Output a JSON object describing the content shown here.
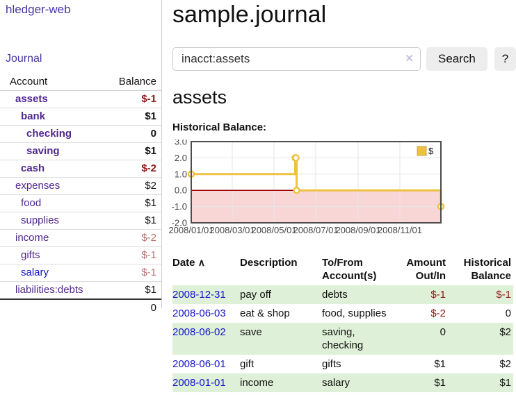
{
  "app": {
    "title": "hledger-web",
    "nav_journal": "Journal"
  },
  "sidebar": {
    "table_headers": {
      "account": "Account",
      "balance": "Balance"
    },
    "accounts": [
      {
        "name": "assets",
        "depth": 1,
        "bold": true,
        "link": "purple",
        "balance": "$-1",
        "bal": "negstrong"
      },
      {
        "name": "bank",
        "depth": 2,
        "bold": true,
        "link": "purple",
        "balance": "$1",
        "bal": "plainbold"
      },
      {
        "name": "checking",
        "depth": 3,
        "bold": true,
        "link": "purple",
        "balance": "0",
        "bal": "plainbold"
      },
      {
        "name": "saving",
        "depth": 3,
        "bold": true,
        "link": "purple",
        "balance": "$1",
        "bal": "plainbold"
      },
      {
        "name": "cash",
        "depth": 2,
        "bold": true,
        "link": "purple",
        "balance": "$-2",
        "bal": "negstrong"
      },
      {
        "name": "expenses",
        "depth": 1,
        "bold": false,
        "link": "purple",
        "balance": "$2",
        "bal": "plain"
      },
      {
        "name": "food",
        "depth": 2,
        "bold": false,
        "link": "purple",
        "balance": "$1",
        "bal": "plain"
      },
      {
        "name": "supplies",
        "depth": 2,
        "bold": false,
        "link": "purple",
        "balance": "$1",
        "bal": "plain"
      },
      {
        "name": "income",
        "depth": 1,
        "bold": false,
        "link": "purple",
        "balance": "$-2",
        "bal": "neg"
      },
      {
        "name": "gifts",
        "depth": 2,
        "bold": false,
        "link": "purple",
        "balance": "$-1",
        "bal": "neg"
      },
      {
        "name": "salary",
        "depth": 2,
        "bold": false,
        "link": "blue",
        "balance": "$-1",
        "bal": "neg"
      },
      {
        "name": "liabilities:debts",
        "depth": 1,
        "bold": false,
        "link": "purple",
        "balance": "$1",
        "bal": "plain"
      }
    ],
    "total": "0"
  },
  "header": {
    "title": "sample.journal"
  },
  "search": {
    "query": "inacct:assets",
    "clear_icon": "✕",
    "search_label": "Search",
    "help_label": "?"
  },
  "account_page": {
    "heading": "assets",
    "section_label": "Historical Balance:"
  },
  "chart_data": {
    "type": "line",
    "step": true,
    "title": "Historical Balance",
    "series": [
      {
        "name": "$",
        "color": "#edc240",
        "points": [
          [
            "2008-01-01",
            1
          ],
          [
            "2008-06-01",
            2
          ],
          [
            "2008-06-02",
            2
          ],
          [
            "2008-06-03",
            0
          ],
          [
            "2008-12-31",
            -1
          ]
        ]
      }
    ],
    "x_range": [
      "2008-01-01",
      "2008-12-31"
    ],
    "x_ticks": [
      {
        "date": "2008-01-01",
        "label": "2008/01/01"
      },
      {
        "date": "2008-03-01",
        "label": "2008/03/01"
      },
      {
        "date": "2008-05-01",
        "label": "2008/05/01"
      },
      {
        "date": "2008-07-01",
        "label": "2008/07/01"
      },
      {
        "date": "2008-09-01",
        "label": "2008/09/01"
      },
      {
        "date": "2008-11-01",
        "label": "2008/11/01"
      }
    ],
    "ylim": [
      -2,
      3
    ],
    "y_ticks": [
      3.0,
      2.0,
      1.0,
      0.0,
      -1.0,
      -2.0
    ],
    "grid": true,
    "legend_position": "top-right",
    "legend_label": "$",
    "colors": {
      "line": "#edc240",
      "marker_fill": "#ffffff",
      "negative_region": "#f9d6d6",
      "zero_line": "#990000",
      "gridline": "#e6e6e6",
      "border": "#4c4c4c",
      "tick_text": "#444444"
    }
  },
  "txn_table": {
    "headers": {
      "date": "Date",
      "sort_icon": "∧",
      "description": "Description",
      "accounts": "To/From\nAccount(s)",
      "amount": "Amount\nOut/In",
      "balance": "Historical\nBalance"
    },
    "rows": [
      {
        "date": "2008-12-31",
        "description": "pay off",
        "accounts": "debts",
        "amount": "$-1",
        "amount_neg": true,
        "balance": "$-1",
        "balance_neg": true
      },
      {
        "date": "2008-06-03",
        "description": "eat & shop",
        "accounts": "food, supplies",
        "amount": "$-2",
        "amount_neg": true,
        "balance": "0",
        "balance_neg": false
      },
      {
        "date": "2008-06-02",
        "description": "save",
        "accounts": "saving,\nchecking",
        "amount": "0",
        "amount_neg": false,
        "balance": "$2",
        "balance_neg": false
      },
      {
        "date": "2008-06-01",
        "description": "gift",
        "accounts": "gifts",
        "amount": "$1",
        "amount_neg": false,
        "balance": "$2",
        "balance_neg": false
      },
      {
        "date": "2008-01-01",
        "description": "income",
        "accounts": "salary",
        "amount": "$1",
        "amount_neg": false,
        "balance": "$1",
        "balance_neg": false
      }
    ]
  }
}
